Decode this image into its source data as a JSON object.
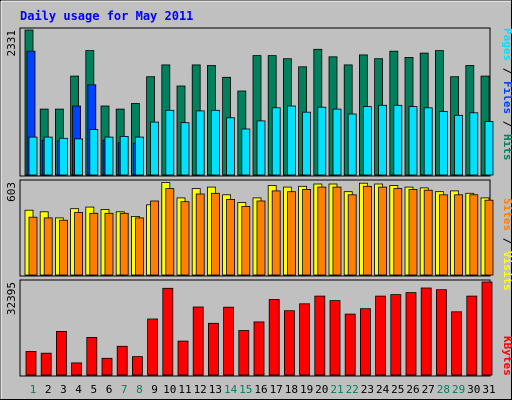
{
  "chart_data": [
    {
      "type": "bar",
      "title": "Daily usage for May 2011",
      "categories": [
        "1",
        "2",
        "3",
        "4",
        "5",
        "6",
        "7",
        "8",
        "9",
        "10",
        "11",
        "12",
        "13",
        "14",
        "15",
        "16",
        "17",
        "18",
        "19",
        "20",
        "21",
        "22",
        "23",
        "24",
        "25",
        "26",
        "27",
        "28",
        "29",
        "30",
        "31"
      ],
      "weekend_days": [
        "1",
        "7",
        "8",
        "14",
        "15",
        "21",
        "22",
        "28",
        "29"
      ],
      "ymax_label": "2331",
      "ylim": [
        0,
        2331
      ],
      "legend": [
        "Pages",
        "Files",
        "Hits"
      ],
      "series": [
        {
          "name": "Hits",
          "color": "#00805c",
          "values": [
            2331,
            1060,
            1060,
            1590,
            2000,
            1110,
            1060,
            1150,
            1580,
            1770,
            1430,
            1770,
            1760,
            1570,
            1350,
            1920,
            1920,
            1870,
            1740,
            2020,
            1900,
            1770,
            1930,
            1870,
            1990,
            1890,
            1960,
            2000,
            1580,
            1760,
            1590
          ]
        },
        {
          "name": "Files",
          "color": "#0040ff",
          "values": [
            1990,
            560,
            550,
            1110,
            1450,
            560,
            520,
            510,
            0,
            0,
            0,
            0,
            0,
            0,
            0,
            0,
            0,
            0,
            0,
            0,
            0,
            0,
            0,
            0,
            0,
            0,
            0,
            0,
            0,
            0,
            0
          ]
        },
        {
          "name": "Pages",
          "color": "#00e0ff",
          "values": [
            610,
            610,
            590,
            580,
            730,
            610,
            620,
            610,
            850,
            1040,
            840,
            1030,
            1040,
            920,
            740,
            870,
            1080,
            1110,
            1010,
            1090,
            1060,
            980,
            1100,
            1120,
            1120,
            1100,
            1080,
            1020,
            960,
            1000,
            860
          ]
        }
      ]
    },
    {
      "type": "bar",
      "ymax_label": "603",
      "ylim": [
        0,
        603
      ],
      "legend": [
        "Sites",
        "Visits"
      ],
      "series": [
        {
          "name": "Visits",
          "color": "#ffff00",
          "values": [
            420,
            410,
            370,
            430,
            440,
            425,
            410,
            380,
            455,
            600,
            500,
            560,
            570,
            520,
            470,
            500,
            580,
            570,
            575,
            590,
            590,
            540,
            595,
            590,
            580,
            570,
            565,
            540,
            545,
            530,
            500
          ]
        },
        {
          "name": "Sites",
          "color": "#ff8000",
          "values": [
            375,
            370,
            355,
            405,
            400,
            400,
            400,
            370,
            480,
            560,
            475,
            525,
            530,
            490,
            445,
            480,
            545,
            540,
            555,
            570,
            570,
            520,
            575,
            570,
            560,
            555,
            550,
            520,
            520,
            520,
            485
          ]
        }
      ]
    },
    {
      "type": "bar",
      "ymax_label": "32395",
      "ylim": [
        0,
        32395
      ],
      "legend": [
        "KBytes"
      ],
      "series": [
        {
          "name": "KBytes",
          "color": "#ff0000",
          "values": [
            8200,
            7600,
            15200,
            4200,
            13100,
            5800,
            10000,
            6400,
            19500,
            30200,
            11800,
            23700,
            18000,
            23600,
            15500,
            18500,
            26300,
            22400,
            24800,
            27500,
            25900,
            21200,
            23100,
            27500,
            28000,
            28700,
            30300,
            29700,
            22000,
            27500,
            33000
          ]
        }
      ]
    }
  ]
}
